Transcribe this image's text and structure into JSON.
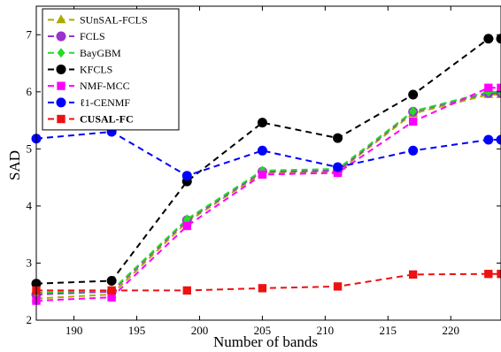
{
  "chart_data": {
    "type": "line",
    "xlabel": "Number of bands",
    "ylabel": "SAD",
    "xlim": [
      187,
      224
    ],
    "ylim": [
      2,
      7.5
    ],
    "xticks": [
      190,
      195,
      200,
      205,
      210,
      215,
      220
    ],
    "yticks": [
      2,
      3,
      4,
      5,
      6,
      7
    ],
    "grid": false,
    "legend_position": "top-left",
    "x": [
      187,
      193,
      199,
      205,
      211,
      217,
      223,
      224
    ],
    "series": [
      {
        "name": "SUnSAL-FCLS",
        "color": "#aaaa00",
        "marker": "triangle",
        "values": [
          2.38,
          2.45,
          3.72,
          4.58,
          4.6,
          5.62,
          5.95,
          5.95
        ]
      },
      {
        "name": "FCLS",
        "color": "#9933cc",
        "marker": "circle",
        "values": [
          2.45,
          2.5,
          3.75,
          4.6,
          4.62,
          5.65,
          5.98,
          5.98
        ]
      },
      {
        "name": "BayGBM",
        "color": "#22dd22",
        "marker": "diamond",
        "values": [
          2.48,
          2.52,
          3.77,
          4.62,
          4.65,
          5.66,
          6.0,
          6.0
        ]
      },
      {
        "name": "KFCLS",
        "color": "#000000",
        "marker": "circle",
        "values": [
          2.64,
          2.69,
          4.43,
          5.46,
          5.19,
          5.95,
          6.93,
          6.93
        ]
      },
      {
        "name": "NMF-MCC",
        "color": "#ff00ff",
        "marker": "square",
        "values": [
          2.34,
          2.4,
          3.65,
          4.55,
          4.58,
          5.48,
          6.07,
          6.07
        ]
      },
      {
        "name": "ℓ1-CENMF",
        "color": "#0000ff",
        "marker": "circle",
        "values": [
          5.18,
          5.3,
          4.53,
          4.97,
          4.68,
          4.97,
          5.16,
          5.16
        ]
      },
      {
        "name": "CUSAL-FC",
        "color": "#ee1111",
        "marker": "square",
        "bold": true,
        "values": [
          2.52,
          2.52,
          2.52,
          2.56,
          2.59,
          2.8,
          2.81,
          2.81
        ]
      }
    ]
  }
}
